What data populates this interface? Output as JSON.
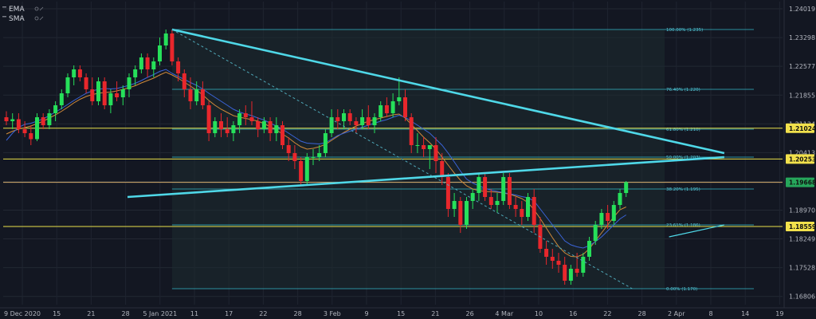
{
  "chart_data": {
    "type": "candlestick",
    "indicators": [
      "EMA",
      "SMA"
    ],
    "y_axis": {
      "ticks": [
        "1.24019",
        "1.23298",
        "1.22577",
        "1.21855",
        "1.21134",
        "1.20413",
        "1.19691",
        "1.18970",
        "1.18249",
        "1.17528",
        "1.16806"
      ],
      "range": [
        1.166,
        1.242
      ]
    },
    "x_axis": {
      "ticks": [
        "9 Dec 2020",
        "15",
        "21",
        "28",
        "5 Jan 2021",
        "11",
        "17",
        "22",
        "28",
        "3 Feb",
        "9",
        "15",
        "21",
        "26",
        "4 Mar",
        "10",
        "16",
        "22",
        "28",
        "2 Apr",
        "8",
        "14",
        "19"
      ]
    },
    "price_labels": [
      {
        "value": 1.21024,
        "text": "1.21024",
        "color": "#f2e14c"
      },
      {
        "value": 1.20253,
        "text": "1.20253",
        "color": "#f2e14c"
      },
      {
        "value": 1.19668,
        "text": "1.19668",
        "color": "#26a65b"
      },
      {
        "value": 1.18559,
        "text": "1.18559",
        "color": "#f2e14c"
      }
    ],
    "horizontal_lines": [
      {
        "value": 1.21024,
        "color": "#e8e04a"
      },
      {
        "value": 1.20253,
        "color": "#e8e04a"
      },
      {
        "value": 1.19668,
        "color": "#d8b070"
      },
      {
        "value": 1.18559,
        "color": "#e8e04a"
      }
    ],
    "fibonacci": {
      "high": 1.235,
      "low": 1.17,
      "levels": [
        {
          "ratio": "100.00%",
          "value": 1.235,
          "text": "100.00% (1.235)"
        },
        {
          "ratio": "76.40%",
          "value": 1.22,
          "text": "76.40% (1.220)"
        },
        {
          "ratio": "61.80%",
          "value": 1.21,
          "text": "61.80% (1.210)"
        },
        {
          "ratio": "50.00%",
          "value": 1.203,
          "text": "50.00% (1.203)"
        },
        {
          "ratio": "38.20%",
          "value": 1.195,
          "text": "38.20% (1.195)"
        },
        {
          "ratio": "23.61%",
          "value": 1.186,
          "text": "23.61% (1.186)"
        },
        {
          "ratio": "0.00%",
          "value": 1.17,
          "text": "0.00% (1.170)"
        }
      ]
    },
    "candles": [
      [
        1.213,
        1.2145,
        1.211,
        1.212
      ],
      [
        1.212,
        1.214,
        1.21,
        1.2125
      ],
      [
        1.2125,
        1.214,
        1.209,
        1.21
      ],
      [
        1.21,
        1.212,
        1.208,
        1.209
      ],
      [
        1.209,
        1.211,
        1.206,
        1.2075
      ],
      [
        1.2075,
        1.214,
        1.207,
        1.213
      ],
      [
        1.213,
        1.214,
        1.21,
        1.211
      ],
      [
        1.211,
        1.215,
        1.21,
        1.214
      ],
      [
        1.214,
        1.217,
        1.212,
        1.216
      ],
      [
        1.216,
        1.22,
        1.215,
        1.219
      ],
      [
        1.219,
        1.224,
        1.218,
        1.223
      ],
      [
        1.223,
        1.226,
        1.221,
        1.225
      ],
      [
        1.225,
        1.226,
        1.222,
        1.223
      ],
      [
        1.223,
        1.224,
        1.219,
        1.22
      ],
      [
        1.22,
        1.223,
        1.216,
        1.217
      ],
      [
        1.217,
        1.223,
        1.216,
        1.222
      ],
      [
        1.222,
        1.223,
        1.215,
        1.216
      ],
      [
        1.216,
        1.22,
        1.214,
        1.219
      ],
      [
        1.219,
        1.222,
        1.217,
        1.218
      ],
      [
        1.218,
        1.221,
        1.216,
        1.22
      ],
      [
        1.22,
        1.224,
        1.218,
        1.223
      ],
      [
        1.223,
        1.226,
        1.221,
        1.225
      ],
      [
        1.225,
        1.229,
        1.224,
        1.228
      ],
      [
        1.228,
        1.229,
        1.223,
        1.225
      ],
      [
        1.225,
        1.228,
        1.223,
        1.227
      ],
      [
        1.227,
        1.233,
        1.226,
        1.231
      ],
      [
        1.231,
        1.235,
        1.23,
        1.234
      ],
      [
        1.234,
        1.235,
        1.226,
        1.227
      ],
      [
        1.227,
        1.228,
        1.222,
        1.224
      ],
      [
        1.224,
        1.225,
        1.218,
        1.22
      ],
      [
        1.22,
        1.223,
        1.215,
        1.217
      ],
      [
        1.217,
        1.222,
        1.216,
        1.22
      ],
      [
        1.22,
        1.222,
        1.215,
        1.216
      ],
      [
        1.216,
        1.217,
        1.207,
        1.209
      ],
      [
        1.209,
        1.213,
        1.208,
        1.212
      ],
      [
        1.212,
        1.214,
        1.208,
        1.21
      ],
      [
        1.21,
        1.213,
        1.208,
        1.209
      ],
      [
        1.209,
        1.212,
        1.207,
        1.211
      ],
      [
        1.211,
        1.215,
        1.209,
        1.214
      ],
      [
        1.214,
        1.216,
        1.211,
        1.213
      ],
      [
        1.213,
        1.217,
        1.211,
        1.212
      ],
      [
        1.212,
        1.213,
        1.208,
        1.21
      ],
      [
        1.21,
        1.213,
        1.209,
        1.212
      ],
      [
        1.212,
        1.213,
        1.207,
        1.209
      ],
      [
        1.209,
        1.213,
        1.207,
        1.211
      ],
      [
        1.211,
        1.212,
        1.205,
        1.206
      ],
      [
        1.206,
        1.208,
        1.202,
        1.204
      ],
      [
        1.204,
        1.206,
        1.2,
        1.202
      ],
      [
        1.202,
        1.203,
        1.196,
        1.197
      ],
      [
        1.197,
        1.204,
        1.196,
        1.203
      ],
      [
        1.203,
        1.205,
        1.201,
        1.203
      ],
      [
        1.203,
        1.206,
        1.202,
        1.204
      ],
      [
        1.204,
        1.21,
        1.203,
        1.209
      ],
      [
        1.209,
        1.215,
        1.208,
        1.213
      ],
      [
        1.213,
        1.215,
        1.21,
        1.212
      ],
      [
        1.212,
        1.215,
        1.21,
        1.214
      ],
      [
        1.214,
        1.215,
        1.211,
        1.212
      ],
      [
        1.212,
        1.213,
        1.209,
        1.211
      ],
      [
        1.211,
        1.215,
        1.21,
        1.213
      ],
      [
        1.213,
        1.216,
        1.21,
        1.211
      ],
      [
        1.211,
        1.214,
        1.209,
        1.213
      ],
      [
        1.213,
        1.217,
        1.212,
        1.216
      ],
      [
        1.216,
        1.218,
        1.213,
        1.214
      ],
      [
        1.214,
        1.219,
        1.213,
        1.217
      ],
      [
        1.217,
        1.223,
        1.216,
        1.218
      ],
      [
        1.218,
        1.22,
        1.212,
        1.213
      ],
      [
        1.213,
        1.214,
        1.204,
        1.206
      ],
      [
        1.206,
        1.209,
        1.204,
        1.206
      ],
      [
        1.206,
        1.208,
        1.203,
        1.205
      ],
      [
        1.205,
        1.206,
        1.2,
        1.206
      ],
      [
        1.206,
        1.208,
        1.199,
        1.202
      ],
      [
        1.202,
        1.204,
        1.196,
        1.198
      ],
      [
        1.198,
        1.199,
        1.188,
        1.19
      ],
      [
        1.19,
        1.194,
        1.188,
        1.192
      ],
      [
        1.192,
        1.193,
        1.184,
        1.186
      ],
      [
        1.186,
        1.193,
        1.185,
        1.192
      ],
      [
        1.192,
        1.195,
        1.19,
        1.194
      ],
      [
        1.194,
        1.199,
        1.192,
        1.198
      ],
      [
        1.198,
        1.199,
        1.192,
        1.193
      ],
      [
        1.193,
        1.195,
        1.19,
        1.191
      ],
      [
        1.191,
        1.194,
        1.189,
        1.192
      ],
      [
        1.192,
        1.199,
        1.191,
        1.198
      ],
      [
        1.198,
        1.199,
        1.19,
        1.191
      ],
      [
        1.191,
        1.193,
        1.188,
        1.19
      ],
      [
        1.19,
        1.192,
        1.186,
        1.188
      ],
      [
        1.188,
        1.194,
        1.187,
        1.193
      ],
      [
        1.193,
        1.195,
        1.184,
        1.186
      ],
      [
        1.186,
        1.188,
        1.179,
        1.18
      ],
      [
        1.18,
        1.182,
        1.176,
        1.178
      ],
      [
        1.178,
        1.18,
        1.175,
        1.177
      ],
      [
        1.177,
        1.179,
        1.174,
        1.176
      ],
      [
        1.176,
        1.178,
        1.171,
        1.172
      ],
      [
        1.172,
        1.176,
        1.171,
        1.175
      ],
      [
        1.175,
        1.179,
        1.173,
        1.174
      ],
      [
        1.174,
        1.179,
        1.173,
        1.178
      ],
      [
        1.178,
        1.183,
        1.177,
        1.182
      ],
      [
        1.182,
        1.187,
        1.181,
        1.186
      ],
      [
        1.186,
        1.19,
        1.185,
        1.189
      ],
      [
        1.189,
        1.191,
        1.185,
        1.187
      ],
      [
        1.187,
        1.192,
        1.186,
        1.191
      ],
      [
        1.191,
        1.195,
        1.19,
        1.194
      ],
      [
        1.194,
        1.197,
        1.193,
        1.1967
      ]
    ],
    "ema": [
      1.2072,
      1.209,
      1.2105,
      1.2112,
      1.2115,
      1.212,
      1.2126,
      1.2134,
      1.2143,
      1.2152,
      1.2162,
      1.2172,
      1.2181,
      1.219,
      1.2196,
      1.22,
      1.2202,
      1.2201,
      1.2202,
      1.2206,
      1.221,
      1.2215,
      1.2222,
      1.223,
      1.2237,
      1.2245,
      1.225,
      1.224,
      1.2232,
      1.2225,
      1.2217,
      1.221,
      1.2201,
      1.219,
      1.218,
      1.217,
      1.216,
      1.215,
      1.2143,
      1.2138,
      1.2134,
      1.2128,
      1.2123,
      1.2115,
      1.2108,
      1.21,
      1.209,
      1.208,
      1.207,
      1.2065,
      1.2064,
      1.2063,
      1.2066,
      1.2075,
      1.2084,
      1.209,
      1.2095,
      1.21,
      1.2105,
      1.211,
      1.2115,
      1.212,
      1.2124,
      1.213,
      1.2135,
      1.213,
      1.212,
      1.211,
      1.21,
      1.209,
      1.2075,
      1.206,
      1.204,
      1.2018,
      1.1995,
      1.1975,
      1.1965,
      1.1958,
      1.1952,
      1.1947,
      1.1944,
      1.1941,
      1.1938,
      1.1935,
      1.1931,
      1.1928,
      1.192,
      1.19,
      1.188,
      1.186,
      1.184,
      1.182,
      1.181,
      1.1805,
      1.1802,
      1.1808,
      1.1818,
      1.183,
      1.1845,
      1.186,
      1.1875,
      1.1885
    ],
    "sma": [
      1.2088,
      1.2095,
      1.21,
      1.2104,
      1.2108,
      1.2114,
      1.212,
      1.2128,
      1.2136,
      1.2145,
      1.2155,
      1.2166,
      1.2175,
      1.2182,
      1.2187,
      1.219,
      1.2192,
      1.2193,
      1.2196,
      1.22,
      1.2204,
      1.2209,
      1.2216,
      1.2222,
      1.2228,
      1.2236,
      1.2243,
      1.2236,
      1.2228,
      1.2218,
      1.2208,
      1.2198,
      1.2186,
      1.2172,
      1.216,
      1.215,
      1.2142,
      1.2134,
      1.213,
      1.2127,
      1.2124,
      1.212,
      1.2114,
      1.2106,
      1.2098,
      1.2088,
      1.2078,
      1.2066,
      1.2056,
      1.205,
      1.2052,
      1.2056,
      1.2062,
      1.2072,
      1.2082,
      1.2092,
      1.21,
      1.2108,
      1.2114,
      1.212,
      1.2124,
      1.2128,
      1.2132,
      1.2136,
      1.2138,
      1.2128,
      1.2112,
      1.2096,
      1.208,
      1.2066,
      1.205,
      1.203,
      1.201,
      1.199,
      1.1972,
      1.1958,
      1.195,
      1.1946,
      1.1944,
      1.1943,
      1.1942,
      1.194,
      1.1937,
      1.1932,
      1.1926,
      1.1916,
      1.1898,
      1.1876,
      1.1852,
      1.1828,
      1.1806,
      1.179,
      1.1781,
      1.178,
      1.1786,
      1.18,
      1.182,
      1.184,
      1.186,
      1.188,
      1.1898,
      1.1905
    ],
    "lines": {
      "upper_trend": {
        "start": [
          27,
          1.235
        ],
        "end": [
          117,
          1.204
        ],
        "color": "#4fd8e8"
      },
      "lower_trend": {
        "start": [
          19,
          1.193
        ],
        "end": [
          117,
          1.203
        ],
        "color": "#4fd8e8"
      },
      "fib_diagonal": {
        "start": [
          27,
          1.235
        ],
        "end": [
          102,
          1.17
        ],
        "color": "#4fa8b8"
      },
      "small_blue": {
        "start": [
          108,
          1.183
        ],
        "end": [
          117,
          1.186
        ],
        "color": "#4fd8e8"
      }
    },
    "colors": {
      "bull": "#26e05a",
      "bear": "#e8272c",
      "ema": "#3b64d8",
      "sma": "#d08a3a",
      "background": "#131722",
      "fib_zone": "#1e2b30"
    }
  }
}
